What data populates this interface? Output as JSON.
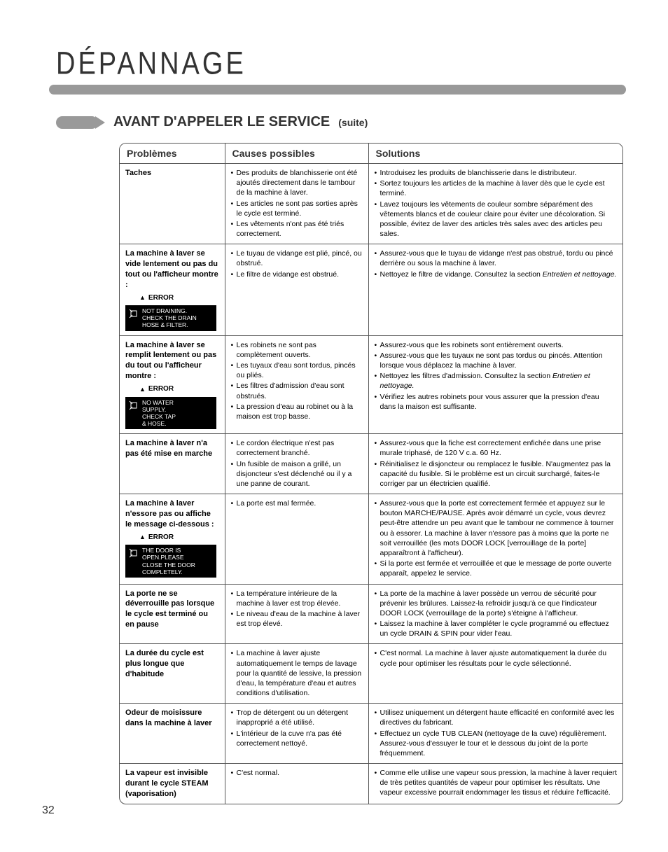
{
  "page": {
    "title": "DÉPANNAGE",
    "section_title": "AVANT D'APPELER LE SERVICE",
    "section_sub": "(suite)",
    "page_number": "32"
  },
  "headers": [
    "Problèmes",
    "Causes possibles",
    "Solutions"
  ],
  "error_label": "ERROR",
  "rows": [
    {
      "problem_bold": "Taches",
      "causes": [
        "Des produits de blanchisserie ont été ajoutés directement dans le tambour de la machine à laver.",
        "Les articles ne sont pas sorties après le cycle est terminé.",
        "Les vêtements n'ont pas été triés correctement."
      ],
      "solutions": [
        "Introduisez les produits de blanchisserie dans le distributeur.",
        "Sortez toujours les articles de la machine à laver dès que le cycle est terminé.",
        "Lavez toujours les vêtements de couleur sombre séparément des vêtements blancs et de couleur claire pour éviter une décoloration. Si possible, évitez de laver des articles très sales avec des articles peu sales."
      ]
    },
    {
      "problem_bold": "La machine à laver se vide lentement ou pas du tout ou l'afficheur montre :",
      "err_lines": [
        "NOT DRAINING.",
        "CHECK THE DRAIN",
        "HOSE & FILTER."
      ],
      "causes": [
        "Le tuyau de vidange est plié, pincé, ou obstrué.",
        "Le filtre de vidange est obstrué."
      ],
      "solutions": [
        "Assurez-vous que le tuyau de vidange n'est pas obstrué, tordu ou pincé derrière ou sous la machine à laver.",
        "Nettoyez le filtre de vidange. Consultez la section <span class='em'>Entretien et nettoyage.</span>"
      ]
    },
    {
      "problem_bold": "La machine à laver se remplit lentement ou pas du tout ou l'afficheur montre :",
      "err_lines": [
        "NO WATER",
        "SUPPLY.",
        "CHECK TAP",
        "& HOSE."
      ],
      "causes": [
        "Les robinets ne sont pas complètement ouverts.",
        "Les tuyaux d'eau sont tordus, pincés ou pliés.",
        "Les filtres d'admission d'eau sont obstrués.",
        "La pression d'eau au robinet ou à la maison est trop basse."
      ],
      "solutions": [
        "Assurez-vous que les robinets sont entièrement ouverts.",
        "Assurez-vous que les tuyaux ne sont pas tordus ou pincés. Attention lorsque vous déplacez la machine à laver.",
        "Nettoyez les filtres d'admission. Consultez la section <span class='em'>Entretien et nettoyage.</span>",
        "Vérifiez les autres robinets pour vous assurer que la pression d'eau dans la maison est suffisante."
      ]
    },
    {
      "problem_bold": "La machine à laver n'a pas été mise en marche",
      "causes": [
        "Le cordon électrique n'est pas correctement branché.",
        "Un fusible de maison a grillé, un disjoncteur s'est déclenché ou il y a une panne de courant."
      ],
      "solutions": [
        "Assurez-vous que la fiche est correctement enfichée dans une prise murale triphasé, de 120 V c.a. 60 Hz.",
        "Réinitialisez le disjoncteur ou remplacez le fusible. N'augmentez pas la capacité du fusible. Si le problème est un circuit surchargé, faites-le corriger par un électricien qualifié."
      ]
    },
    {
      "problem_bold": "La machine à laver n'essore pas ou affiche le message ci-dessous :",
      "err_lines": [
        "THE DOOR IS",
        "OPEN.PLEASE",
        "CLOSE THE DOOR",
        "COMPLETELY."
      ],
      "causes": [
        "La porte est mal fermée."
      ],
      "solutions": [
        "Assurez-vous que la porte est correctement fermée et appuyez sur le bouton MARCHE/PAUSE. Après avoir démarré un cycle, vous devrez peut-être attendre un peu avant que le tambour ne commence à tourner ou à essorer. La machine à laver n'essore pas à moins que la porte ne soit verrouillée (les mots DOOR LOCK [verrouillage de la porte] apparaîtront à l'afficheur).",
        "Si la porte est fermée et verrouillée et que le message de porte ouverte apparaît, appelez le service."
      ]
    },
    {
      "problem_bold": "La porte ne se déverrouille pas lorsque le cycle est terminé ou en pause",
      "causes": [
        "La température intérieure de la machine à laver est trop élevée.",
        "Le niveau d'eau de la machine à laver est trop élevé."
      ],
      "solutions": [
        "La porte de la machine à laver possède un verrou de sécurité pour prévenir les brûlures. Laissez-la refroidir jusqu'à ce que l'indicateur DOOR LOCK (verrouillage de la porte) s'éteigne à l'afficheur.",
        "Laissez la machine à laver compléter le cycle programmé ou effectuez un cycle DRAIN & SPIN pour vider l'eau."
      ]
    },
    {
      "problem_bold": "La durée du cycle est plus longue que d'habitude",
      "causes": [
        "La machine à laver ajuste automatiquement le temps de lavage pour la quantité de lessive, la pression d'eau, la température d'eau et autres conditions d'utilisation."
      ],
      "solutions": [
        "C'est normal. La machine à laver ajuste automatiquement la durée du cycle pour optimiser les résultats pour le cycle sélectionné."
      ]
    },
    {
      "problem_bold": "Odeur de moisissure dans la machine à laver",
      "causes": [
        "Trop de détergent ou un détergent inapproprié a été utilisé.",
        "L'intérieur de la cuve n'a pas été correctement nettoyé."
      ],
      "solutions": [
        "Utilisez uniquement un détergent haute efficacité en conformité avec les directives du fabricant.",
        "Effectuez un cycle TUB CLEAN (nettoyage de la cuve) régulièrement. Assurez-vous d'essuyer le tour et le dessous du joint de la porte fréquemment."
      ]
    },
    {
      "problem_bold": "La vapeur est invisible durant le cycle STEAM (vaporisation)",
      "causes": [
        "C'est normal."
      ],
      "solutions": [
        "Comme elle utilise une vapeur sous pression, la machine à laver requiert de très petites quantités de vapeur pour optimiser les résultats. Une vapeur excessive pourrait endommager les tissus et réduire l'efficacité."
      ]
    }
  ]
}
